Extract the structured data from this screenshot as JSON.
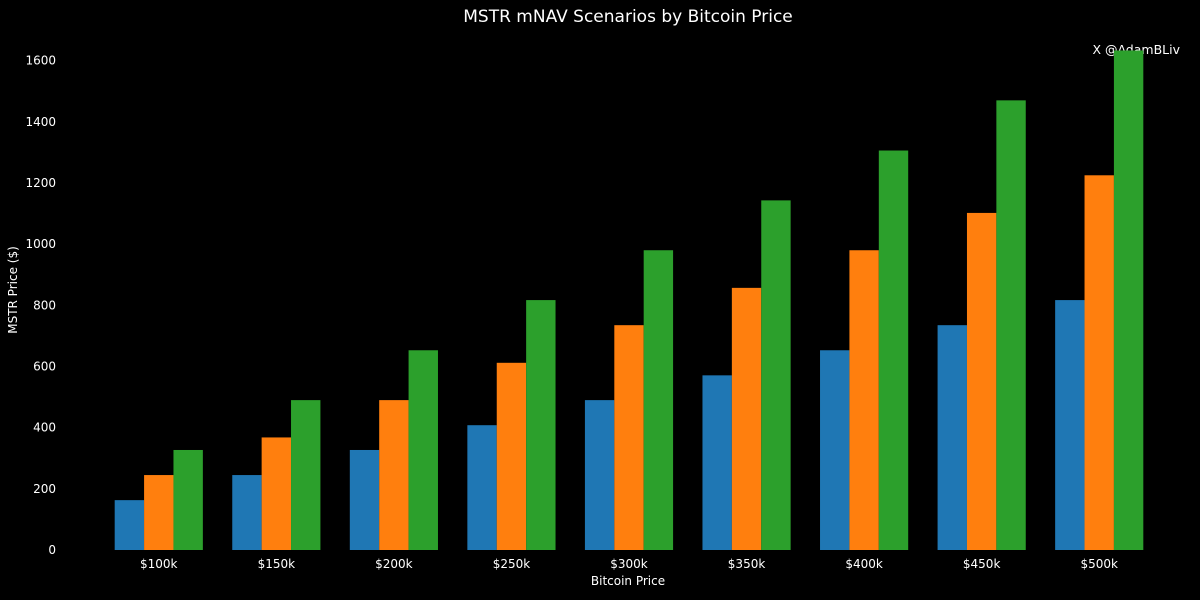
{
  "chart_data": {
    "type": "bar",
    "title": "MSTR mNAV Scenarios by Bitcoin Price",
    "xlabel": "Bitcoin Price",
    "ylabel": "MSTR Price ($)",
    "ylim": [
      0,
      1700
    ],
    "yticks": [
      0,
      200,
      400,
      600,
      800,
      1000,
      1200,
      1400,
      1600
    ],
    "categories": [
      "$100k",
      "$150k",
      "$200k",
      "$250k",
      "$300k",
      "$350k",
      "$400k",
      "$450k",
      "$500k"
    ],
    "series": [
      {
        "color": "#1f77b4",
        "values": [
          163,
          245,
          327,
          408,
          490,
          571,
          653,
          735,
          817
        ]
      },
      {
        "color": "#ff7f0e",
        "values": [
          245,
          368,
          490,
          612,
          735,
          857,
          980,
          1102,
          1225
        ]
      },
      {
        "color": "#2ca02c",
        "values": [
          327,
          490,
          653,
          817,
          980,
          1143,
          1306,
          1470,
          1633
        ]
      }
    ],
    "watermark": "X @AdamBLiv",
    "background": "#000000",
    "grid": false,
    "legend": "none"
  }
}
